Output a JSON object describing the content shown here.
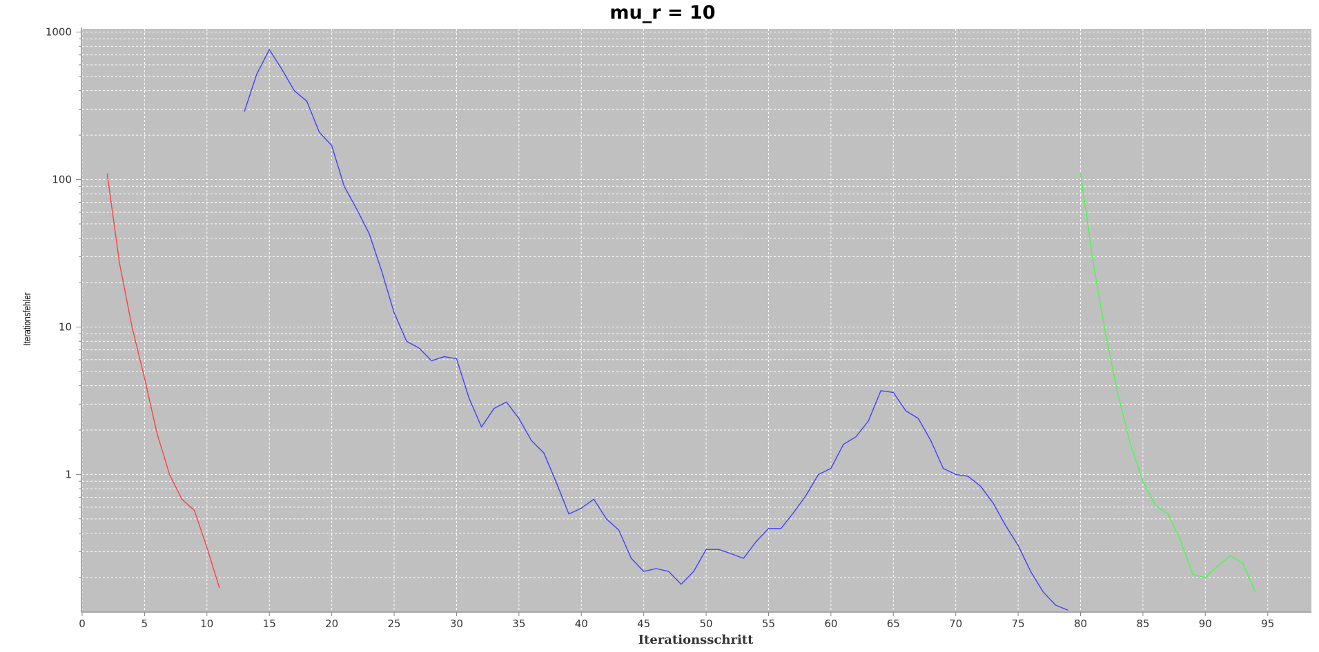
{
  "chart_data": {
    "type": "line",
    "title": "mu_r = 10",
    "xlabel": "Iterationsschritt",
    "ylabel": "Iterationsfehler",
    "xlim": [
      0,
      98.5
    ],
    "ylim": [
      0.118,
      1050
    ],
    "yscale": "log",
    "grid": true,
    "x_ticks": [
      0,
      5,
      10,
      15,
      20,
      25,
      30,
      35,
      40,
      45,
      50,
      55,
      60,
      65,
      70,
      75,
      80,
      85,
      90,
      95
    ],
    "y_ticks": [
      1,
      10,
      100,
      1000
    ],
    "y_tick_labels": [
      "1",
      "10",
      "100",
      "1000"
    ],
    "series": [
      {
        "color": "#ff4040",
        "x": [
          2,
          3,
          4,
          5,
          6,
          7,
          8,
          9,
          10,
          11
        ],
        "y": [
          110,
          27,
          10,
          4.5,
          1.9,
          1.0,
          0.68,
          0.57,
          0.32,
          0.17
        ]
      },
      {
        "color": "#4040ff",
        "x": [
          13,
          14,
          15,
          16,
          17,
          18,
          19,
          20,
          21,
          22,
          23,
          24,
          25,
          26,
          27,
          28,
          29,
          30,
          31,
          32,
          33,
          34,
          35,
          36,
          37,
          38,
          39,
          40,
          41,
          42,
          43,
          44,
          45,
          46,
          47,
          48,
          49,
          50,
          51,
          52,
          53,
          54,
          55,
          56,
          57,
          58,
          59,
          60,
          61,
          62,
          63,
          64,
          65,
          66,
          67,
          68,
          69,
          70,
          71,
          72,
          73,
          74,
          75,
          76,
          77,
          78,
          79
        ],
        "y": [
          290,
          520,
          760,
          560,
          400,
          340,
          210,
          170,
          90,
          63,
          43,
          24,
          12.5,
          8.0,
          7.2,
          5.9,
          6.3,
          6.1,
          3.3,
          2.1,
          2.8,
          3.1,
          2.4,
          1.7,
          1.4,
          0.88,
          0.54,
          0.59,
          0.68,
          0.5,
          0.42,
          0.27,
          0.22,
          0.23,
          0.22,
          0.18,
          0.22,
          0.31,
          0.31,
          0.29,
          0.27,
          0.35,
          0.43,
          0.43,
          0.55,
          0.72,
          1.0,
          1.1,
          1.6,
          1.8,
          2.3,
          3.7,
          3.6,
          2.7,
          2.4,
          1.7,
          1.1,
          1.0,
          0.97,
          0.83,
          0.64,
          0.45,
          0.33,
          0.22,
          0.16,
          0.13,
          0.12
        ]
      },
      {
        "color": "#40ff40",
        "x": [
          80,
          81,
          82,
          83,
          84,
          85,
          86,
          87,
          88,
          89,
          90,
          91,
          92,
          93,
          94
        ],
        "y": [
          110,
          28,
          9.0,
          3.5,
          1.6,
          0.9,
          0.62,
          0.54,
          0.36,
          0.21,
          0.2,
          0.24,
          0.28,
          0.25,
          0.16
        ]
      }
    ]
  }
}
